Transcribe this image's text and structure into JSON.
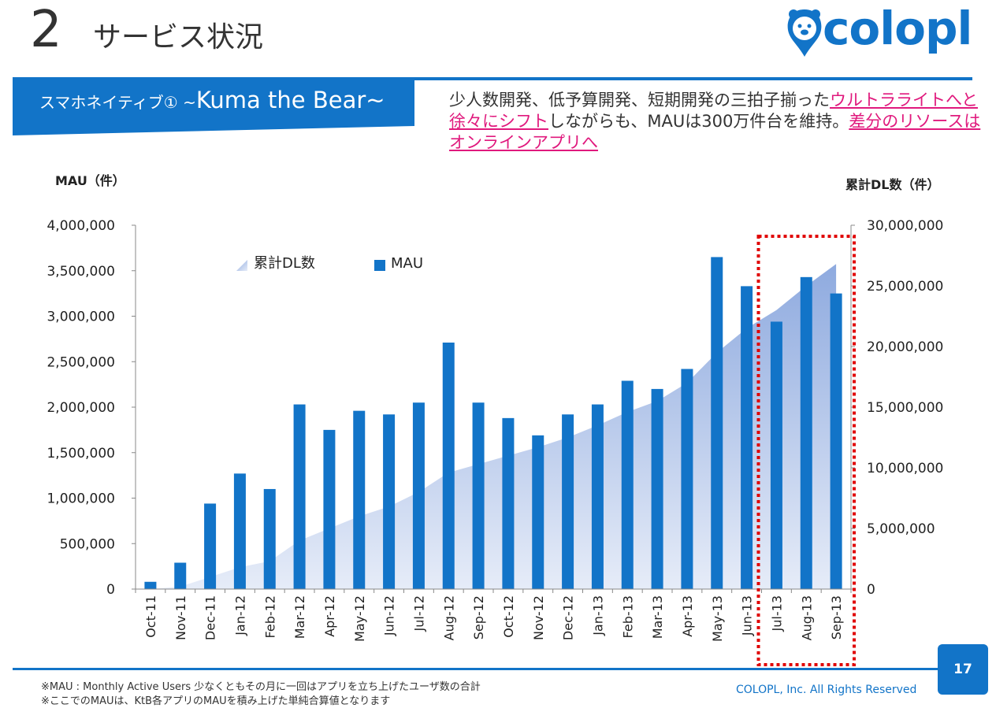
{
  "header": {
    "number": "2",
    "title": "サービス状況",
    "logo_text": "colopl"
  },
  "banner": {
    "prefix": "スマホネイティブ① ~",
    "name": "Kuma the Bear",
    "suffix": "~"
  },
  "description": {
    "part1": "少人数開発、低予算開発、短期開発の三拍子揃った",
    "highlight1": "ウルトラライトへと徐々にシフト",
    "part2": "しながらも、MAUは300万件台を維持。",
    "highlight2": "差分のリソースはオンラインアプリへ"
  },
  "chart_data": {
    "type": "bar",
    "categories": [
      "Oct-11",
      "Nov-11",
      "Dec-11",
      "Jan-12",
      "Feb-12",
      "Mar-12",
      "Apr-12",
      "May-12",
      "Jun-12",
      "Jul-12",
      "Aug-12",
      "Sep-12",
      "Oct-12",
      "Nov-12",
      "Dec-12",
      "Jan-13",
      "Feb-13",
      "Mar-13",
      "Apr-13",
      "May-13",
      "Jun-13",
      "Jul-13",
      "Aug-13",
      "Sep-13"
    ],
    "series": [
      {
        "name": "MAU",
        "type": "bar",
        "axis": "left",
        "color": "#1274c8",
        "values": [
          80000,
          290000,
          940000,
          1270000,
          1100000,
          2030000,
          1750000,
          1960000,
          1920000,
          2050000,
          2710000,
          2050000,
          1880000,
          1690000,
          1920000,
          2030000,
          2290000,
          2200000,
          2420000,
          3650000,
          3330000,
          2940000,
          3430000,
          3250000
        ]
      },
      {
        "name": "累計DL数",
        "type": "area",
        "axis": "right",
        "color": "#8eaadf",
        "values": [
          0,
          200000,
          1000000,
          1800000,
          2300000,
          4000000,
          5000000,
          6000000,
          6800000,
          8000000,
          9600000,
          10300000,
          11000000,
          11700000,
          12500000,
          13500000,
          14600000,
          15500000,
          17000000,
          19500000,
          21500000,
          23000000,
          25000000,
          26800000
        ]
      }
    ],
    "yaxis_left": {
      "title": "MAU（件）",
      "min": 0,
      "max": 4000000,
      "ticks": [
        "0",
        "500,000",
        "1,000,000",
        "1,500,000",
        "2,000,000",
        "2,500,000",
        "3,000,000",
        "3,500,000",
        "4,000,000"
      ]
    },
    "yaxis_right": {
      "title": "累計DL数（件）",
      "min": 0,
      "max": 30000000,
      "ticks": [
        "0",
        "5,000,000",
        "10,000,000",
        "15,000,000",
        "20,000,000",
        "25,000,000",
        "30,000,000"
      ]
    },
    "legend": {
      "placement": "top-left",
      "items": [
        "累計DL数",
        "MAU"
      ]
    },
    "highlight": {
      "from": "Jul-13",
      "to": "Sep-13",
      "style": "dotted-red-box",
      "color": "#e00000"
    }
  },
  "footer": {
    "note1": "※MAU : Monthly Active Users 少なくともその月に一回はアプリを立ち上げたユーザ数の合計",
    "note2": "※ここでのMAUは、KtB各アプリのMAUを積み上げた単純合算値となります",
    "copyright": "COLOPL, Inc. All Rights Reserved",
    "page": "17"
  }
}
